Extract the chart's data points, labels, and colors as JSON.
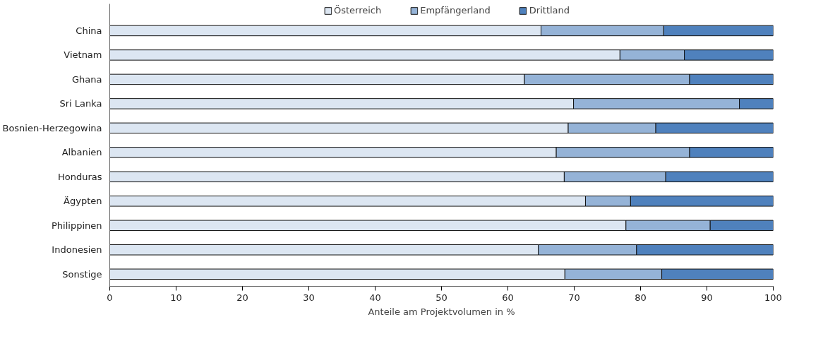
{
  "chart_data": {
    "type": "bar",
    "orientation": "horizontal",
    "stacked": true,
    "xlabel": "Anteile am Projektvolumen in %",
    "categories": [
      "China",
      "Vietnam",
      "Ghana",
      "Sri Lanka",
      "Bosnien-Herzegowina",
      "Albanien",
      "Honduras",
      "Ägypten",
      "Philippinen",
      "Indonesien",
      "Sonstige"
    ],
    "series": [
      {
        "name": "Österreich",
        "color": "#dce6f2",
        "values": [
          65.0,
          76.9,
          62.5,
          69.9,
          69.1,
          67.3,
          68.5,
          71.7,
          77.8,
          64.6,
          68.6
        ]
      },
      {
        "name": "Empfängerland",
        "color": "#95b3d7",
        "values": [
          18.5,
          9.7,
          24.9,
          25.0,
          13.2,
          20.1,
          15.3,
          6.8,
          12.7,
          14.8,
          14.6
        ]
      },
      {
        "name": "Drittland",
        "color": "#4f81bd",
        "values": [
          16.5,
          13.4,
          12.6,
          5.1,
          17.7,
          12.6,
          16.2,
          21.5,
          9.5,
          20.6,
          16.8
        ]
      }
    ],
    "xlim": [
      0,
      100
    ],
    "xticks": [
      0,
      10,
      20,
      30,
      40,
      50,
      60,
      70,
      80,
      90,
      100
    ],
    "grid": false,
    "legend": "top"
  }
}
